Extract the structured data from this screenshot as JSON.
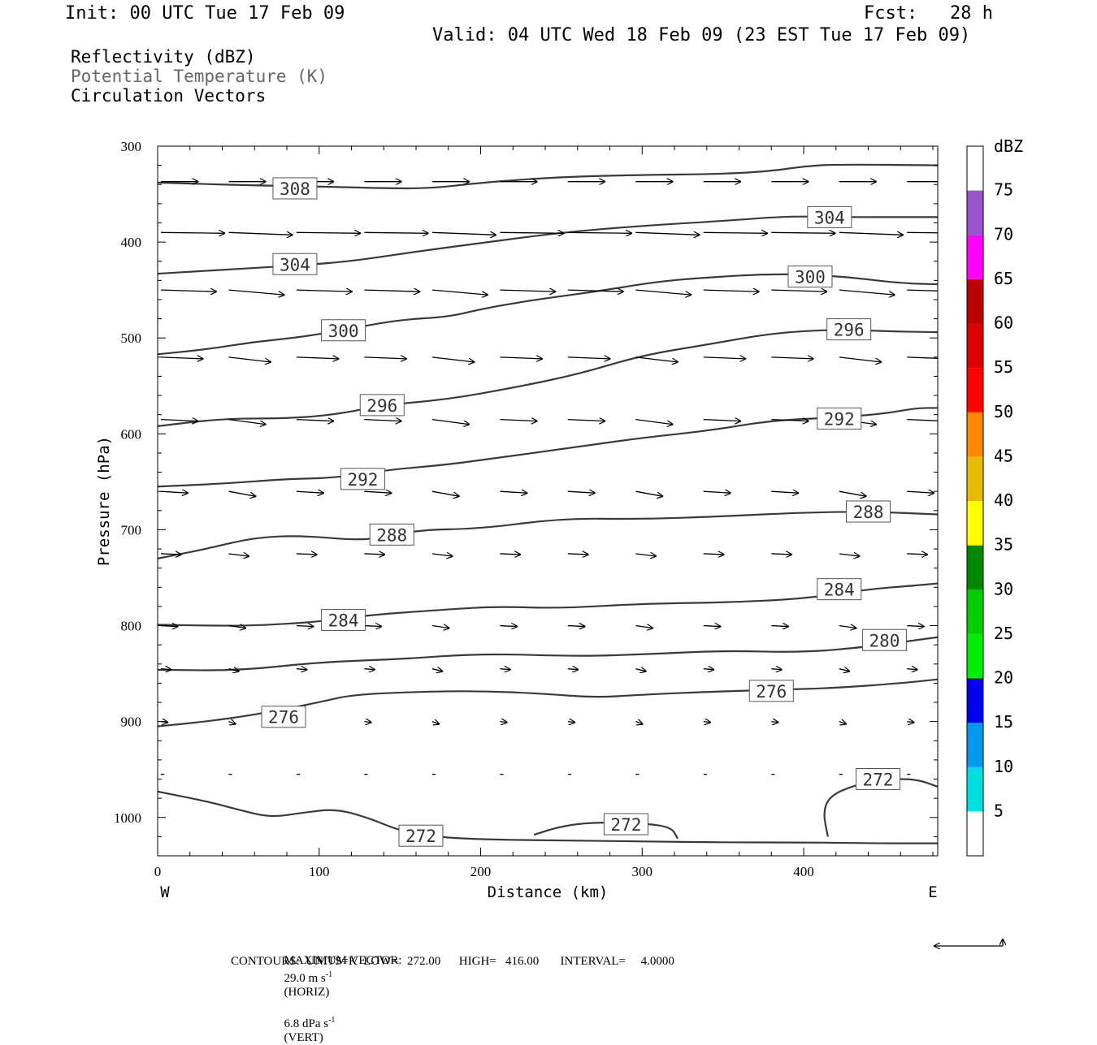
{
  "header": {
    "init": "Init: 00 UTC Tue 17 Feb 09",
    "fcst": "Fcst:   28 h",
    "valid": "Valid: 04 UTC Wed 18 Feb 09 (23 EST Tue 17 Feb 09)"
  },
  "fields": {
    "reflectivity": "Reflectivity (dBZ)",
    "theta": "Potential Temperature (K)",
    "vectors": "Circulation Vectors"
  },
  "colors": {
    "theta_label": "#666666",
    "contour": "#3a3a3a"
  },
  "footer": {
    "max_vector_prefix": "MAXIMUM VECTOR:",
    "max_vector_horiz": "29.0 m s",
    "horiz_tag": "(HORIZ)",
    "max_vector_vert": "6.8 dPa s",
    "vert_tag": "(VERT)",
    "exp": "-1",
    "contours": "CONTOURS:  UNITS=K  LOW=   272.00      HIGH=   416.00       INTERVAL=     4.0000"
  },
  "chart_data": {
    "type": "contour",
    "xlabel": "Distance (km)",
    "ylabel": "Pressure (hPa)",
    "xlim": [
      0,
      483
    ],
    "ylim": [
      300,
      1040
    ],
    "xticks": [
      0,
      100,
      200,
      300,
      400
    ],
    "xticklabels": [
      "0",
      "100",
      "200",
      "300",
      "400"
    ],
    "yticks": [
      300,
      400,
      500,
      600,
      700,
      800,
      900,
      1000
    ],
    "yticklabels": [
      "300",
      "400",
      "500",
      "600",
      "700",
      "800",
      "900",
      "1000"
    ],
    "west_label": "W",
    "east_label": "E",
    "colorbar": {
      "unit": "dBZ",
      "levels": [
        5,
        10,
        15,
        20,
        25,
        30,
        35,
        40,
        45,
        50,
        55,
        60,
        65,
        70,
        75
      ],
      "labels": [
        "5",
        "10",
        "15",
        "20",
        "25",
        "30",
        "35",
        "40",
        "45",
        "50",
        "55",
        "60",
        "65",
        "70",
        "75"
      ],
      "colors": [
        "#00e0e0",
        "#0099ee",
        "#0000ee",
        "#00ee00",
        "#00cc00",
        "#008800",
        "#ffff00",
        "#e6bb00",
        "#ff8800",
        "#ff0000",
        "#dd0000",
        "#bb0000",
        "#ff00ff",
        "#9955cc"
      ]
    },
    "isentropes": [
      {
        "theta": 308,
        "points": [
          [
            0,
            338
          ],
          [
            20,
            339
          ],
          [
            60,
            341
          ],
          [
            100,
            342
          ],
          [
            140,
            344
          ],
          [
            170,
            344
          ],
          [
            200,
            338
          ],
          [
            250,
            332
          ],
          [
            300,
            330
          ],
          [
            350,
            329
          ],
          [
            380,
            326
          ],
          [
            400,
            321
          ],
          [
            420,
            319
          ],
          [
            483,
            320
          ]
        ],
        "labels": [
          {
            "x": 85,
            "p": 344,
            "text": "308"
          }
        ]
      },
      {
        "theta": 304,
        "points": [
          [
            0,
            433
          ],
          [
            50,
            428
          ],
          [
            90,
            424
          ],
          [
            120,
            420
          ],
          [
            160,
            410
          ],
          [
            200,
            401
          ],
          [
            250,
            390
          ],
          [
            300,
            383
          ],
          [
            350,
            378
          ],
          [
            390,
            373
          ],
          [
            420,
            374
          ],
          [
            483,
            374
          ]
        ],
        "labels": [
          {
            "x": 85,
            "p": 423,
            "text": "304"
          },
          {
            "x": 416,
            "p": 374,
            "text": "304"
          }
        ]
      },
      {
        "theta": 300,
        "points": [
          [
            0,
            517
          ],
          [
            30,
            512
          ],
          [
            60,
            504
          ],
          [
            90,
            499
          ],
          [
            120,
            490
          ],
          [
            150,
            481
          ],
          [
            180,
            478
          ],
          [
            200,
            470
          ],
          [
            230,
            461
          ],
          [
            270,
            452
          ],
          [
            310,
            441
          ],
          [
            340,
            437
          ],
          [
            380,
            433
          ],
          [
            420,
            435
          ],
          [
            460,
            443
          ],
          [
            483,
            444
          ]
        ],
        "labels": [
          {
            "x": 115,
            "p": 492,
            "text": "300"
          },
          {
            "x": 404,
            "p": 436,
            "text": "300"
          }
        ]
      },
      {
        "theta": 296,
        "points": [
          [
            0,
            592
          ],
          [
            40,
            584
          ],
          [
            80,
            584
          ],
          [
            110,
            580
          ],
          [
            140,
            570
          ],
          [
            180,
            564
          ],
          [
            220,
            552
          ],
          [
            260,
            538
          ],
          [
            300,
            518
          ],
          [
            340,
            507
          ],
          [
            380,
            495
          ],
          [
            420,
            491
          ],
          [
            450,
            493
          ],
          [
            483,
            494
          ]
        ],
        "labels": [
          {
            "x": 139,
            "p": 570,
            "text": "296"
          },
          {
            "x": 428,
            "p": 491,
            "text": "296"
          }
        ]
      },
      {
        "theta": 292,
        "points": [
          [
            0,
            655
          ],
          [
            40,
            652
          ],
          [
            80,
            647
          ],
          [
            110,
            646
          ],
          [
            140,
            638
          ],
          [
            180,
            632
          ],
          [
            210,
            625
          ],
          [
            250,
            616
          ],
          [
            300,
            604
          ],
          [
            340,
            597
          ],
          [
            380,
            586
          ],
          [
            420,
            583
          ],
          [
            450,
            579
          ],
          [
            470,
            573
          ],
          [
            483,
            573
          ]
        ],
        "labels": [
          {
            "x": 127,
            "p": 647,
            "text": "292"
          },
          {
            "x": 422,
            "p": 584,
            "text": "292"
          }
        ]
      },
      {
        "theta": 288,
        "points": [
          [
            0,
            730
          ],
          [
            30,
            720
          ],
          [
            60,
            708
          ],
          [
            90,
            706
          ],
          [
            130,
            712
          ],
          [
            160,
            700
          ],
          [
            200,
            699
          ],
          [
            250,
            688
          ],
          [
            300,
            689
          ],
          [
            350,
            686
          ],
          [
            400,
            682
          ],
          [
            440,
            681
          ],
          [
            483,
            684
          ]
        ],
        "labels": [
          {
            "x": 145,
            "p": 705,
            "text": "288"
          },
          {
            "x": 440,
            "p": 681,
            "text": "288"
          }
        ]
      },
      {
        "theta": 284,
        "points": [
          [
            0,
            799
          ],
          [
            30,
            800
          ],
          [
            60,
            800
          ],
          [
            100,
            796
          ],
          [
            130,
            789
          ],
          [
            180,
            783
          ],
          [
            210,
            780
          ],
          [
            250,
            782
          ],
          [
            300,
            777
          ],
          [
            350,
            776
          ],
          [
            400,
            772
          ],
          [
            440,
            762
          ],
          [
            470,
            758
          ],
          [
            483,
            756
          ]
        ],
        "labels": [
          {
            "x": 115,
            "p": 794,
            "text": "284"
          },
          {
            "x": 422,
            "p": 762,
            "text": "284"
          }
        ]
      },
      {
        "theta": 280,
        "points": [
          [
            0,
            846
          ],
          [
            50,
            847
          ],
          [
            100,
            838
          ],
          [
            150,
            835
          ],
          [
            200,
            829
          ],
          [
            260,
            832
          ],
          [
            300,
            830
          ],
          [
            350,
            826
          ],
          [
            400,
            828
          ],
          [
            440,
            822
          ],
          [
            470,
            815
          ],
          [
            483,
            812
          ]
        ],
        "labels": [
          {
            "x": 450,
            "p": 815,
            "text": "280"
          }
        ]
      },
      {
        "theta": 276,
        "points": [
          [
            0,
            905
          ],
          [
            30,
            900
          ],
          [
            60,
            893
          ],
          [
            100,
            880
          ],
          [
            120,
            872
          ],
          [
            160,
            869
          ],
          [
            200,
            868
          ],
          [
            240,
            871
          ],
          [
            270,
            875
          ],
          [
            300,
            872
          ],
          [
            340,
            869
          ],
          [
            380,
            867
          ],
          [
            420,
            865
          ],
          [
            460,
            860
          ],
          [
            483,
            856
          ]
        ],
        "labels": [
          {
            "x": 78,
            "p": 895,
            "text": "276"
          },
          {
            "x": 380,
            "p": 868,
            "text": "276"
          }
        ]
      },
      {
        "theta": 272,
        "points": [
          [
            0,
            973
          ],
          [
            30,
            983
          ],
          [
            50,
            992
          ],
          [
            70,
            1000
          ],
          [
            90,
            995
          ],
          [
            110,
            991
          ],
          [
            130,
            1000
          ],
          [
            150,
            1014
          ],
          [
            170,
            1020
          ],
          [
            200,
            1023
          ],
          [
            250,
            1024
          ],
          [
            300,
            1025
          ],
          [
            350,
            1026
          ],
          [
            400,
            1026
          ],
          [
            450,
            1027
          ],
          [
            483,
            1027
          ]
        ],
        "labels": [
          {
            "x": 163,
            "p": 1019,
            "text": "272"
          }
        ]
      },
      {
        "theta": 272,
        "points": [
          [
            233,
            1018
          ],
          [
            250,
            1009
          ],
          [
            270,
            1005
          ],
          [
            300,
            1006
          ],
          [
            318,
            1010
          ],
          [
            322,
            1022
          ]
        ],
        "labels": [
          {
            "x": 290,
            "p": 1007,
            "text": "272"
          }
        ]
      },
      {
        "theta": 272,
        "points": [
          [
            415,
            1020
          ],
          [
            412,
            995
          ],
          [
            416,
            978
          ],
          [
            430,
            967
          ],
          [
            450,
            960
          ],
          [
            470,
            960
          ],
          [
            483,
            968
          ]
        ],
        "labels": [
          {
            "x": 446,
            "p": 960,
            "text": "272"
          }
        ]
      }
    ],
    "vector_rows": [
      {
        "p": 337,
        "dx": 22,
        "dp": 0
      },
      {
        "p": 390,
        "dx": 38,
        "dp": 1
      },
      {
        "p": 450,
        "dx": 33,
        "dp": 2
      },
      {
        "p": 520,
        "dx": 25,
        "dp": 2
      },
      {
        "p": 585,
        "dx": 22,
        "dp": 2
      },
      {
        "p": 660,
        "dx": 16,
        "dp": 2
      },
      {
        "p": 725,
        "dx": 12,
        "dp": 1
      },
      {
        "p": 800,
        "dx": 10,
        "dp": 1
      },
      {
        "p": 845,
        "dx": 6,
        "dp": 1
      },
      {
        "p": 900,
        "dx": 4,
        "dp": 1
      },
      {
        "p": 955,
        "dx": 2,
        "dp": 0
      }
    ],
    "vector_columns_km": [
      0,
      42,
      84,
      126,
      168,
      210,
      252,
      294,
      336,
      378,
      420,
      462
    ],
    "reference_vector": {
      "horiz_ms": 29.0,
      "vert_dpa_s": 6.8
    }
  }
}
